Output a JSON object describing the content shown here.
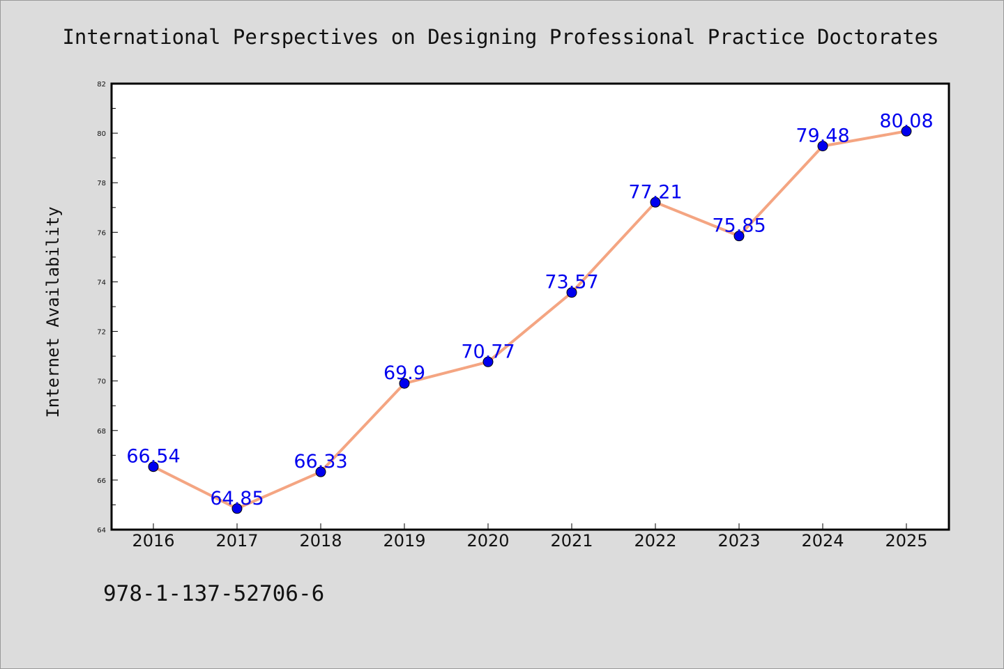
{
  "chart_data": {
    "type": "line",
    "title": "International Perspectives on Designing Professional Practice Doctorates",
    "xlabel": "",
    "ylabel": "Internet Availability",
    "categories": [
      "2016",
      "2017",
      "2018",
      "2019",
      "2020",
      "2021",
      "2022",
      "2023",
      "2024",
      "2025"
    ],
    "values": [
      66.54,
      64.85,
      66.33,
      69.9,
      70.77,
      73.57,
      77.21,
      75.85,
      79.48,
      80.08
    ],
    "data_labels": [
      "66.54",
      "64.85",
      "66.33",
      "69.9",
      "70.77",
      "73.57",
      "77.21",
      "75.85",
      "79.48",
      "80.08"
    ],
    "ylim": [
      64,
      82
    ],
    "yticks": [
      "64",
      "66",
      "68",
      "70",
      "72",
      "74",
      "76",
      "78",
      "80",
      "82"
    ],
    "grid": false,
    "legend": "none",
    "line_color": "#f4a582",
    "marker_color": "#0000ee",
    "label_color": "#0000ee",
    "plot_background": "#ffffff",
    "page_background": "#dcdcdc"
  },
  "footer": {
    "isbn": "978-1-137-52706-6"
  }
}
